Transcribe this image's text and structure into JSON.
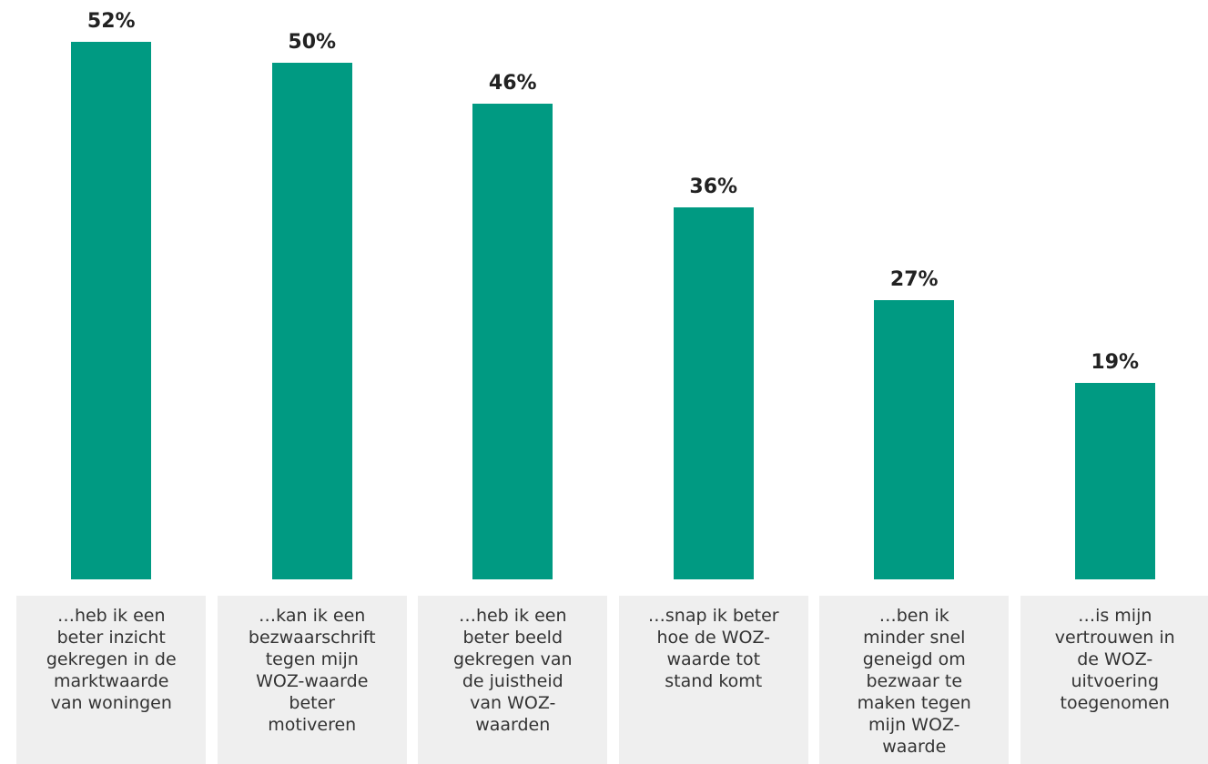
{
  "colors": {
    "bar": "#009a82",
    "category_bg": "#efefef"
  },
  "chart_data": {
    "type": "bar",
    "title": "",
    "xlabel": "",
    "ylabel": "",
    "ylim": [
      0,
      55
    ],
    "grid": false,
    "categories": [
      "…heb ik een beter inzicht gekregen in de marktwaarde van woningen",
      "…kan ik een bezwaarschrift tegen mijn WOZ-waarde beter motiveren",
      "…heb ik een beter beeld gekregen van de juistheid van WOZ-waarden",
      "…snap ik beter hoe de WOZ-waarde tot stand komt",
      "…ben ik minder snel geneigd om bezwaar te maken tegen mijn WOZ-waarde",
      "…is mijn vertrouwen in de WOZ-uitvoering toegenomen"
    ],
    "values": [
      52,
      50,
      46,
      36,
      27,
      19
    ],
    "data_labels": [
      "52%",
      "50%",
      "46%",
      "36%",
      "27%",
      "19%"
    ]
  }
}
